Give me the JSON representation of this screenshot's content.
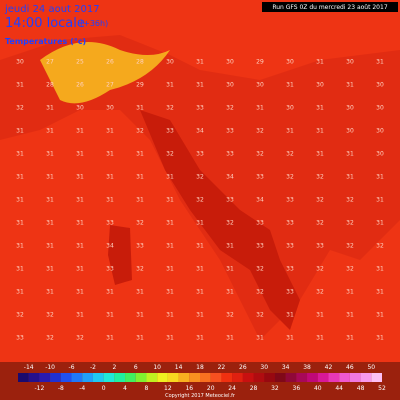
{
  "header": {
    "date": "jeudi 24 aout 2017",
    "time": "14:00 locale",
    "lead": "(+36h)",
    "variable": "Temperatures (°c)",
    "run": "Run GFS 0Z du mercredi 23 août 2017"
  },
  "map": {
    "grid": [
      [
        30,
        27,
        25,
        26,
        28,
        30,
        31,
        30,
        29,
        30,
        31,
        30,
        31
      ],
      [
        31,
        28,
        26,
        27,
        29,
        31,
        31,
        30,
        30,
        31,
        30,
        31,
        30
      ],
      [
        32,
        31,
        30,
        30,
        31,
        32,
        33,
        32,
        31,
        30,
        31,
        30,
        30
      ],
      [
        31,
        31,
        31,
        31,
        32,
        33,
        34,
        33,
        32,
        31,
        31,
        30,
        30
      ],
      [
        31,
        31,
        31,
        31,
        31,
        32,
        33,
        33,
        32,
        32,
        31,
        31,
        30
      ],
      [
        31,
        31,
        31,
        31,
        31,
        31,
        32,
        34,
        33,
        32,
        32,
        31,
        31
      ],
      [
        31,
        31,
        31,
        31,
        31,
        31,
        32,
        33,
        34,
        33,
        32,
        32,
        31
      ],
      [
        31,
        31,
        31,
        33,
        32,
        31,
        31,
        32,
        33,
        33,
        32,
        32,
        31
      ],
      [
        31,
        31,
        31,
        34,
        33,
        31,
        31,
        31,
        33,
        33,
        33,
        32,
        32
      ],
      [
        31,
        31,
        31,
        33,
        32,
        31,
        31,
        31,
        32,
        33,
        32,
        32,
        31
      ],
      [
        31,
        31,
        31,
        31,
        31,
        31,
        31,
        31,
        32,
        33,
        32,
        31,
        31
      ],
      [
        32,
        32,
        31,
        31,
        31,
        31,
        31,
        32,
        32,
        31,
        31,
        31,
        31
      ],
      [
        33,
        32,
        32,
        31,
        31,
        31,
        31,
        31,
        31,
        31,
        31,
        31,
        31
      ]
    ]
  },
  "scale": {
    "top_labels": [
      "-14",
      "-10",
      "-6",
      "-2",
      "2",
      "6",
      "10",
      "14",
      "18",
      "22",
      "26",
      "30",
      "34",
      "38",
      "42",
      "46",
      "50"
    ],
    "bottom_labels": [
      "-12",
      "-8",
      "-4",
      "0",
      "4",
      "8",
      "12",
      "16",
      "20",
      "24",
      "28",
      "32",
      "36",
      "40",
      "44",
      "48",
      "52"
    ],
    "colors": [
      "#1a0a6e",
      "#24108c",
      "#2a1ab0",
      "#2030d0",
      "#2050f0",
      "#2078f8",
      "#20a0f8",
      "#20c8f0",
      "#20e8d8",
      "#20f0a0",
      "#40f060",
      "#80f030",
      "#c0f020",
      "#f0f020",
      "#f8d820",
      "#f8b020",
      "#f89020",
      "#f87020",
      "#f85020",
      "#f03010",
      "#e02010",
      "#c81010",
      "#b00c10",
      "#980810",
      "#800818",
      "#900838",
      "#a80858",
      "#c00878",
      "#d81898",
      "#e838b8",
      "#f058d0",
      "#f078e0",
      "#f898ec",
      "#fcc0f4"
    ],
    "copyright": "Copyright 2017 Meteociel.fr"
  }
}
